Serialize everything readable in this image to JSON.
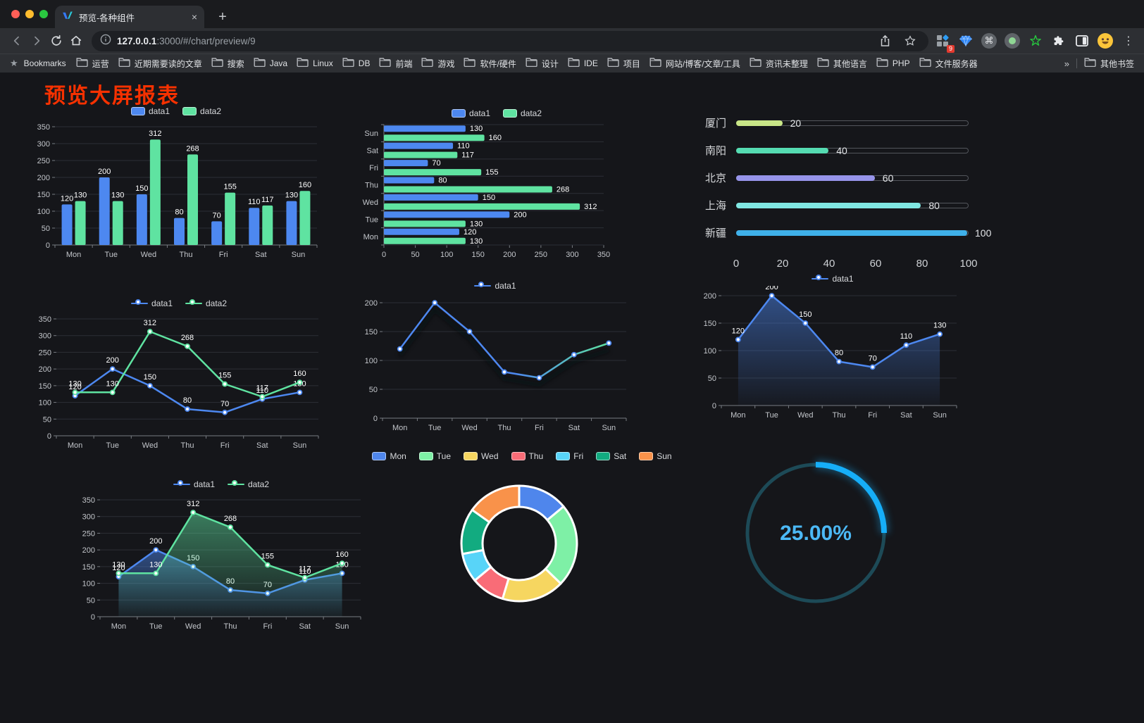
{
  "browser": {
    "tab": {
      "title": "预览-各种组件"
    },
    "glyphs": {
      "close_tab": "×",
      "new_tab": "+",
      "overflow": "»",
      "command": "⌘",
      "kebab": "⋮",
      "bookmarks_star": "★"
    },
    "url": {
      "host": "127.0.0.1",
      "rest": ":3000/#/chart/preview/9"
    },
    "extension_badge": "9",
    "bookmarks_label": "Bookmarks",
    "bookmarks": [
      "运营",
      "近期需要读的文章",
      "搜索",
      "Java",
      "Linux",
      "DB",
      "前端",
      "游戏",
      "软件/硬件",
      "设计",
      "IDE",
      "项目",
      "网站/博客/文章/工具",
      "资讯未整理",
      "其他语言",
      "PHP",
      "文件服务器"
    ],
    "other_bookmarks": "其他书签",
    "toolbar_icons": [
      "back-icon",
      "forward-icon",
      "reload-icon",
      "home-icon",
      "site-info-icon",
      "share-icon",
      "bookmark-star-icon",
      "extensions-grid-icon",
      "gem-icon",
      "command-icon",
      "record-icon",
      "green-star-icon",
      "puzzle-icon",
      "split-view-icon",
      "avatar-emoji",
      "menu-kebab-icon"
    ]
  },
  "page": {
    "title": "预览大屏报表",
    "title_color": "#f63100"
  },
  "chart_data": [
    {
      "id": "bar",
      "type": "bar",
      "categories": [
        "Mon",
        "Tue",
        "Wed",
        "Thu",
        "Fri",
        "Sat",
        "Sun"
      ],
      "series": [
        {
          "name": "data1",
          "color": "#4d88f0",
          "values": [
            120,
            200,
            150,
            80,
            70,
            110,
            130
          ]
        },
        {
          "name": "data2",
          "color": "#5fe3a1",
          "values": [
            130,
            130,
            312,
            268,
            155,
            117,
            160
          ]
        }
      ],
      "ylim": [
        0,
        350
      ],
      "ytick": 50,
      "legend": "top",
      "grid": true
    },
    {
      "id": "hbar",
      "type": "bar",
      "orientation": "horizontal",
      "categories": [
        "Mon",
        "Tue",
        "Wed",
        "Thu",
        "Fri",
        "Sat",
        "Sun"
      ],
      "series": [
        {
          "name": "data1",
          "color": "#4d88f0",
          "values": [
            120,
            200,
            150,
            80,
            70,
            110,
            130
          ]
        },
        {
          "name": "data2",
          "color": "#5fe3a1",
          "values": [
            130,
            130,
            312,
            268,
            155,
            117,
            160
          ]
        }
      ],
      "xlim": [
        0,
        350
      ],
      "xtick": 50,
      "legend": "top",
      "grid": true
    },
    {
      "id": "citybars",
      "type": "bar",
      "orientation": "horizontal-progress",
      "items": [
        {
          "label": "厦门",
          "value": 20,
          "color": "#c9e687"
        },
        {
          "label": "南阳",
          "value": 40,
          "color": "#55dcb2"
        },
        {
          "label": "北京",
          "value": 60,
          "color": "#9794ea"
        },
        {
          "label": "上海",
          "value": 80,
          "color": "#80e7e2"
        },
        {
          "label": "新疆",
          "value": 100,
          "color": "#3fb1ea"
        }
      ],
      "xlim": [
        0,
        100
      ],
      "ticks": [
        0,
        20,
        40,
        60,
        80,
        100
      ]
    },
    {
      "id": "line2",
      "type": "line",
      "categories": [
        "Mon",
        "Tue",
        "Wed",
        "Thu",
        "Fri",
        "Sat",
        "Sun"
      ],
      "series": [
        {
          "name": "data1",
          "color": "#4d88f0",
          "values": [
            120,
            200,
            150,
            80,
            70,
            110,
            130
          ]
        },
        {
          "name": "data2",
          "color": "#5fe3a1",
          "values": [
            130,
            130,
            312,
            268,
            155,
            117,
            160
          ]
        }
      ],
      "ylim": [
        0,
        350
      ],
      "ytick": 50,
      "labels": true,
      "legend": "top"
    },
    {
      "id": "line1",
      "type": "line",
      "categories": [
        "Mon",
        "Tue",
        "Wed",
        "Thu",
        "Fri",
        "Sat",
        "Sun"
      ],
      "series": [
        {
          "name": "data1",
          "color": "#4d88f0",
          "values": [
            120,
            200,
            150,
            80,
            70,
            110,
            130
          ]
        }
      ],
      "gradient_stroke": [
        "#4d88f0",
        "#5fe3a1"
      ],
      "ylim": [
        0,
        200
      ],
      "ytick": 50,
      "labels": false,
      "legend": "top"
    },
    {
      "id": "area1",
      "type": "area",
      "categories": [
        "Mon",
        "Tue",
        "Wed",
        "Thu",
        "Fri",
        "Sat",
        "Sun"
      ],
      "series": [
        {
          "name": "data1",
          "color": "#4d88f0",
          "values": [
            120,
            200,
            150,
            80,
            70,
            110,
            130
          ]
        }
      ],
      "area": true,
      "ylim": [
        0,
        200
      ],
      "ytick": 50,
      "labels": true,
      "legend": "top"
    },
    {
      "id": "area2",
      "type": "area",
      "categories": [
        "Mon",
        "Tue",
        "Wed",
        "Thu",
        "Fri",
        "Sat",
        "Sun"
      ],
      "series": [
        {
          "name": "data1",
          "color": "#4d88f0",
          "values": [
            120,
            200,
            150,
            80,
            70,
            110,
            130
          ]
        },
        {
          "name": "data2",
          "color": "#5fe3a1",
          "values": [
            130,
            130,
            312,
            268,
            155,
            117,
            160
          ]
        }
      ],
      "area": true,
      "ylim": [
        0,
        350
      ],
      "ytick": 50,
      "labels": true,
      "legend": "top"
    },
    {
      "id": "donut",
      "type": "pie",
      "items": [
        {
          "label": "Mon",
          "value": 120,
          "color": "#4f86ec"
        },
        {
          "label": "Tue",
          "value": 200,
          "color": "#7ef0a6"
        },
        {
          "label": "Wed",
          "value": 150,
          "color": "#f6d660"
        },
        {
          "label": "Thu",
          "value": 80,
          "color": "#f96c77"
        },
        {
          "label": "Fri",
          "value": 70,
          "color": "#58d4f8"
        },
        {
          "label": "Sat",
          "value": 110,
          "color": "#12ab80"
        },
        {
          "label": "Sun",
          "value": 130,
          "color": "#f9924a"
        }
      ],
      "legend": "top",
      "inner_radius_ratio": 0.63
    },
    {
      "id": "ring",
      "type": "progress-ring",
      "percent": 25,
      "label": "25.00%",
      "color": "#16aef8",
      "track_color": "#1d4a57",
      "text_color": "#4cb9f6"
    }
  ]
}
